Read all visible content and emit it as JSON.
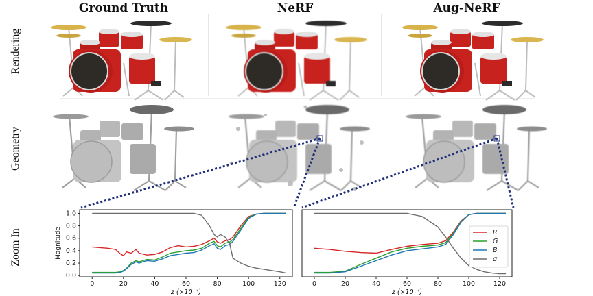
{
  "columns": [
    "Ground Truth",
    "NeRF",
    "Aug-NeRF"
  ],
  "rows": [
    "Rendering",
    "Geometry",
    "Zoom In"
  ],
  "colors": {
    "drum_red": "#c8221e",
    "chrome": "#cfcfcf",
    "geometry_gray": "#b9b9b9",
    "zoom_line": "#1f2f7a",
    "R": "#d62728",
    "G": "#2ca02c",
    "B": "#1f77b4",
    "sigma": "#6d6d6d"
  },
  "chart_data": [
    {
      "type": "line",
      "panel": "NeRF zoom in",
      "xlabel": "z (×10⁻⁴)",
      "ylabel": "Magnitude",
      "xlim": [
        -8,
        128
      ],
      "ylim": [
        -0.02,
        1.06
      ],
      "xticks": [
        0,
        20,
        40,
        60,
        80,
        100,
        120
      ],
      "yticks": [
        "0.0",
        "0.2",
        "0.4",
        "0.6",
        "0.8",
        "1.0"
      ],
      "x": [
        0,
        5,
        10,
        15,
        18,
        20,
        22,
        25,
        28,
        30,
        35,
        40,
        45,
        50,
        55,
        60,
        65,
        70,
        75,
        78,
        80,
        82,
        85,
        88,
        90,
        95,
        100,
        105,
        110,
        115,
        120,
        124
      ],
      "series": [
        {
          "name": "R",
          "values": [
            0.46,
            0.45,
            0.44,
            0.42,
            0.35,
            0.32,
            0.38,
            0.36,
            0.42,
            0.36,
            0.33,
            0.34,
            0.38,
            0.45,
            0.48,
            0.46,
            0.47,
            0.5,
            0.56,
            0.6,
            0.54,
            0.52,
            0.56,
            0.58,
            0.62,
            0.8,
            0.95,
            0.99,
            1.0,
            1.0,
            1.0,
            1.0
          ]
        },
        {
          "name": "G",
          "values": [
            0.05,
            0.05,
            0.05,
            0.05,
            0.06,
            0.08,
            0.12,
            0.2,
            0.24,
            0.22,
            0.26,
            0.25,
            0.3,
            0.36,
            0.38,
            0.4,
            0.41,
            0.44,
            0.52,
            0.55,
            0.48,
            0.46,
            0.52,
            0.54,
            0.58,
            0.76,
            0.94,
            0.99,
            1.0,
            1.0,
            1.0,
            1.0
          ]
        },
        {
          "name": "B",
          "values": [
            0.04,
            0.04,
            0.04,
            0.04,
            0.05,
            0.07,
            0.11,
            0.18,
            0.22,
            0.2,
            0.24,
            0.23,
            0.27,
            0.32,
            0.34,
            0.36,
            0.37,
            0.41,
            0.48,
            0.51,
            0.44,
            0.42,
            0.48,
            0.5,
            0.55,
            0.73,
            0.92,
            0.99,
            1.0,
            1.0,
            1.0,
            1.0
          ]
        },
        {
          "name": "σ",
          "values": [
            1.0,
            1.0,
            1.0,
            1.0,
            1.0,
            1.0,
            1.0,
            1.0,
            1.0,
            1.0,
            1.0,
            1.0,
            1.0,
            1.0,
            1.0,
            1.0,
            1.0,
            0.97,
            0.8,
            0.66,
            0.62,
            0.66,
            0.62,
            0.5,
            0.28,
            0.2,
            0.15,
            0.12,
            0.1,
            0.08,
            0.06,
            0.04
          ]
        }
      ]
    },
    {
      "type": "line",
      "panel": "Aug-NeRF zoom in",
      "xlabel": "z (×10⁻⁴)",
      "ylabel": "",
      "xlim": [
        -8,
        128
      ],
      "ylim": [
        -0.02,
        1.06
      ],
      "xticks": [
        0,
        20,
        40,
        60,
        80,
        100,
        120
      ],
      "yticks": [],
      "legend_position": "right",
      "x": [
        0,
        10,
        20,
        30,
        40,
        50,
        60,
        70,
        80,
        85,
        90,
        95,
        100,
        105,
        110,
        115,
        120,
        124
      ],
      "series": [
        {
          "name": "R",
          "values": [
            0.44,
            0.42,
            0.39,
            0.37,
            0.36,
            0.42,
            0.47,
            0.5,
            0.52,
            0.56,
            0.7,
            0.88,
            0.98,
            1.0,
            1.0,
            1.0,
            1.0,
            1.0
          ]
        },
        {
          "name": "G",
          "values": [
            0.05,
            0.05,
            0.07,
            0.18,
            0.28,
            0.38,
            0.44,
            0.47,
            0.49,
            0.53,
            0.68,
            0.87,
            0.98,
            1.0,
            1.0,
            1.0,
            1.0,
            1.0
          ]
        },
        {
          "name": "B",
          "values": [
            0.04,
            0.04,
            0.06,
            0.15,
            0.24,
            0.33,
            0.4,
            0.43,
            0.46,
            0.5,
            0.66,
            0.86,
            0.98,
            1.0,
            1.0,
            1.0,
            1.0,
            1.0
          ]
        },
        {
          "name": "σ",
          "values": [
            1.0,
            1.0,
            1.0,
            1.0,
            1.0,
            1.0,
            1.0,
            0.95,
            0.78,
            0.62,
            0.44,
            0.28,
            0.16,
            0.1,
            0.06,
            0.04,
            0.03,
            0.03
          ]
        }
      ]
    }
  ]
}
